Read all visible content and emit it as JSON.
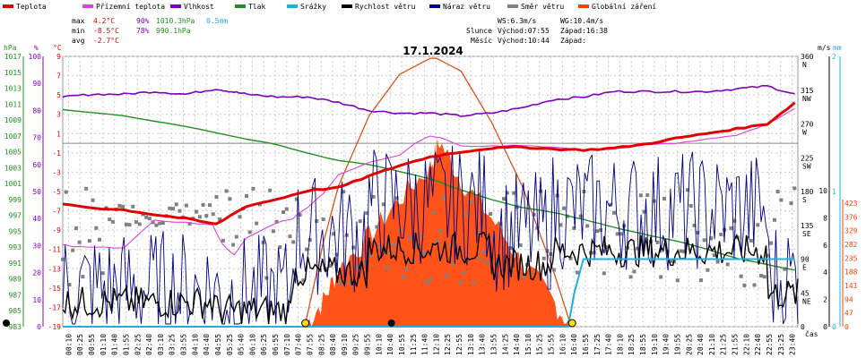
{
  "chart_data": {
    "type": "line",
    "title": "17.1.2024",
    "xlabel": "čas",
    "legend": [
      {
        "name": "Teplota",
        "color": "#e00000"
      },
      {
        "name": "Přízemní teplota",
        "color": "#e040e0"
      },
      {
        "name": "Vlhkost",
        "color": "#8000c0"
      },
      {
        "name": "Tlak",
        "color": "#209020"
      },
      {
        "name": "Srážky",
        "color": "#20b0e0"
      },
      {
        "name": "Rychlost větru",
        "color": "#000000"
      },
      {
        "name": "Náraz větru",
        "color": "#000080"
      },
      {
        "name": "Směr větru",
        "color": "#808080"
      },
      {
        "name": "Globální záření",
        "color": "#ff4000"
      }
    ],
    "stats": {
      "max_label": "max",
      "max_temp": "4.2°C",
      "max_hum": "90%",
      "max_press": "1010.3hPa",
      "max_rain": "0.5mm",
      "min_label": "min",
      "min_temp": "-8.5°C",
      "min_hum": "78%",
      "min_press": "990.1hPa",
      "avg_label": "avg",
      "avg_temp": "-2.7°C"
    },
    "sun_info": {
      "ws": "WS:6.3m/s",
      "wg": "WG:10.4m/s",
      "slunce_label": "Slunce",
      "slunce_rise": "Východ:07:55",
      "slunce_set": "Západ:16:38",
      "mesic_label": "Měsíc",
      "mesic_rise": "Východ:10:44",
      "mesic_set": "Západ:"
    },
    "axes": {
      "hpa_unit": "hPa",
      "pct_unit": "%",
      "temp_unit": "°C",
      "hpa_ticks": [
        "1017",
        "1015",
        "1013",
        "1011",
        "1009",
        "1007",
        "1005",
        "1003",
        "1001",
        "999",
        "997",
        "995",
        "993",
        "991",
        "989",
        "987",
        "985",
        "983"
      ],
      "pct_ticks": [
        "100",
        "90",
        "80",
        "70",
        "60",
        "50",
        "40",
        "30",
        "20",
        "10",
        "0"
      ],
      "temp_ticks": [
        "9",
        "7",
        "5",
        "3",
        "1",
        "-1",
        "-3",
        "-5",
        "-7",
        "-9",
        "-11",
        "-13",
        "-15",
        "-17",
        "-19"
      ],
      "dir_unit": "m/s",
      "rain_unit": "mm",
      "dir_ticks": [
        {
          "deg": "360",
          "dir": "N"
        },
        {
          "deg": "315",
          "dir": "NW"
        },
        {
          "deg": "270",
          "dir": "W"
        },
        {
          "deg": "225",
          "dir": "SW"
        },
        {
          "deg": "180",
          "dir": "S"
        },
        {
          "deg": "135",
          "dir": "SE"
        },
        {
          "deg": "90",
          "dir": "E"
        },
        {
          "deg": "45",
          "dir": "NE"
        },
        {
          "deg": "0",
          "dir": ""
        }
      ],
      "ms_ticks": [
        "10",
        "8",
        "6",
        "4",
        "2",
        "0"
      ],
      "mm_ticks": [
        "2",
        "1",
        "0"
      ],
      "rad_ticks": [
        "423",
        "376",
        "329",
        "282",
        "235",
        "188",
        "141",
        "94",
        "47",
        "0"
      ],
      "time_ticks": [
        "00:10",
        "00:25",
        "00:55",
        "01:10",
        "01:40",
        "01:55",
        "02:25",
        "02:40",
        "03:10",
        "03:25",
        "03:55",
        "04:10",
        "04:40",
        "04:55",
        "05:25",
        "05:40",
        "06:10",
        "06:25",
        "06:55",
        "07:10",
        "07:40",
        "07:55",
        "08:25",
        "08:40",
        "09:10",
        "09:25",
        "09:55",
        "10:10",
        "10:40",
        "10:55",
        "11:25",
        "11:40",
        "12:10",
        "12:25",
        "12:55",
        "13:10",
        "13:40",
        "13:55",
        "14:25",
        "14:40",
        "15:10",
        "15:25",
        "15:55",
        "16:10",
        "16:40",
        "16:55",
        "17:25",
        "17:40",
        "18:10",
        "18:25",
        "18:55",
        "19:10",
        "19:40",
        "19:55",
        "20:25",
        "20:40",
        "21:10",
        "21:25",
        "21:55",
        "22:10",
        "22:40",
        "22:55",
        "23:25",
        "23:40"
      ]
    },
    "ranges": {
      "temp": [
        -19,
        9
      ],
      "humidity": [
        0,
        100
      ],
      "pressure": [
        983,
        1017
      ],
      "wind_ms": [
        0,
        10
      ],
      "radiation": [
        0,
        423
      ],
      "direction": [
        0,
        360
      ],
      "rain_mm": [
        0,
        2
      ],
      "time_h": [
        0,
        24
      ]
    },
    "series": [
      {
        "name": "Teplota",
        "unit": "°C",
        "t": [
          0,
          1,
          2,
          3,
          4,
          5,
          6,
          7,
          8,
          9,
          10,
          11,
          12,
          13,
          14,
          15,
          16,
          17,
          18,
          19,
          20,
          21,
          22,
          23,
          23.9
        ],
        "values": [
          -6.3,
          -6.7,
          -6.9,
          -7.4,
          -7.8,
          -8.4,
          -6.5,
          -5.8,
          -4.9,
          -4.6,
          -3.4,
          -2.3,
          -1.4,
          -0.9,
          -0.5,
          -0.4,
          -0.6,
          -0.7,
          -0.5,
          -0.1,
          0.5,
          1.0,
          1.5,
          2.0,
          4.2
        ]
      },
      {
        "name": "Přízemní teplota",
        "unit": "°C",
        "t": [
          0,
          0.3,
          1,
          2,
          3,
          4,
          4.9,
          5.2,
          5.6,
          6,
          7,
          7.5,
          8,
          8.5,
          9,
          10,
          11,
          11.5,
          12,
          12.5,
          13,
          14,
          15,
          16,
          17,
          18,
          19,
          20,
          21,
          22,
          23,
          23.9
        ],
        "values": [
          -10.5,
          -10.7,
          -10.8,
          -10.8,
          -8.0,
          -8.2,
          -8.5,
          -10.4,
          -11.6,
          -9.8,
          -8.2,
          -7.8,
          -6.6,
          -5.2,
          -3.3,
          -2.0,
          -1.2,
          0.0,
          0.8,
          0.4,
          -0.3,
          -0.3,
          -0.2,
          -0.4,
          -0.7,
          -0.6,
          -0.2,
          0.0,
          0.4,
          0.8,
          2.0,
          3.6
        ]
      },
      {
        "name": "Vlhkost",
        "unit": "%",
        "t": [
          0,
          1,
          2,
          3,
          4,
          5,
          5.5,
          6,
          7,
          8,
          9,
          10,
          11,
          12,
          13,
          14,
          15,
          16,
          17,
          18,
          19,
          20,
          21,
          22,
          23,
          23.9
        ],
        "values": [
          85,
          86,
          86,
          87,
          86,
          88,
          87,
          86,
          85,
          85,
          83,
          80,
          79,
          79,
          78,
          79,
          81,
          84,
          85,
          87,
          87,
          87,
          87,
          88,
          89,
          86
        ]
      },
      {
        "name": "Tlak",
        "unit": "hPa",
        "t": [
          0,
          2,
          4,
          6,
          7,
          8,
          9,
          10,
          11,
          12,
          13,
          14,
          15,
          16,
          17,
          18,
          19,
          20,
          21,
          22,
          23,
          23.9
        ],
        "values": [
          1010.3,
          1009.5,
          1008.2,
          1006.6,
          1005.9,
          1004.8,
          1003.9,
          1003.4,
          1002.5,
          1001.6,
          1000.2,
          999.0,
          998.0,
          997.4,
          996.5,
          995.5,
          994.6,
          993.8,
          992.8,
          991.6,
          990.8,
          990.1
        ]
      },
      {
        "name": "Srážky",
        "unit": "mm",
        "t": [
          0,
          16.4,
          16.5,
          16.7,
          17.0,
          17.3,
          17.6,
          23.9
        ],
        "values": [
          0,
          0,
          0.0,
          0.25,
          0.5,
          0.5,
          0.5,
          0.5
        ]
      },
      {
        "name": "Globální záření",
        "unit": "W/m²",
        "t": [
          7.9,
          8.5,
          9,
          10,
          11,
          12,
          12.3,
          13,
          14,
          15,
          16,
          16.6
        ],
        "values": [
          0,
          40,
          90,
          140,
          200,
          250,
          290,
          230,
          170,
          100,
          40,
          0
        ]
      },
      {
        "name": "Teoretické záření",
        "unit": "W/m²",
        "t": [
          7.9,
          8.5,
          9,
          10,
          11,
          12,
          12.2,
          13,
          14,
          15,
          16,
          16.6
        ],
        "values": [
          0,
          130,
          220,
          330,
          395,
          420,
          420,
          400,
          320,
          220,
          90,
          0
        ]
      }
    ],
    "markers": [
      {
        "name": "východ slunce",
        "time": 7.92
      },
      {
        "name": "západ slunce",
        "time": 16.63
      },
      {
        "name": "východ měsíce",
        "time": 10.73
      }
    ]
  }
}
